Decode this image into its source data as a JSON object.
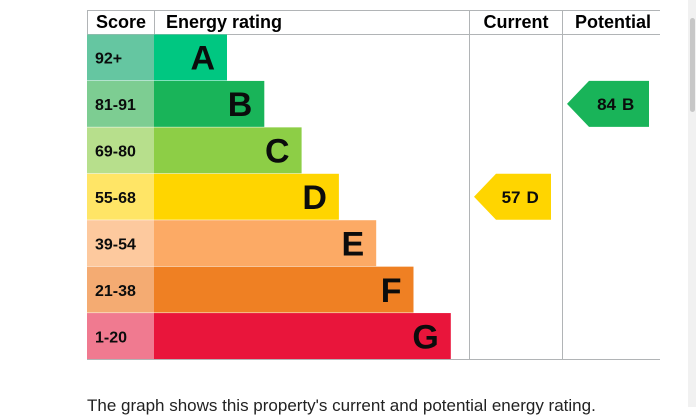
{
  "headers": {
    "score": "Score",
    "rating": "Energy rating",
    "current": "Current",
    "potential": "Potential"
  },
  "chart_data": {
    "type": "bar",
    "bands": [
      {
        "letter": "A",
        "range": "92+",
        "color": "#00c781",
        "score_color": "#65c6a1"
      },
      {
        "letter": "B",
        "range": "81-91",
        "color": "#19b459",
        "score_color": "#7dcd92"
      },
      {
        "letter": "C",
        "range": "69-80",
        "color": "#8dce46",
        "score_color": "#b7df8c"
      },
      {
        "letter": "D",
        "range": "55-68",
        "color": "#ffd500",
        "score_color": "#ffe566"
      },
      {
        "letter": "E",
        "range": "39-54",
        "color": "#fcaa65",
        "score_color": "#fdc99e"
      },
      {
        "letter": "F",
        "range": "21-38",
        "color": "#ef8023",
        "score_color": "#f4ab72"
      },
      {
        "letter": "G",
        "range": "1-20",
        "color": "#e9153b",
        "score_color": "#f07a90"
      }
    ],
    "current": {
      "value": 57,
      "letter": "D",
      "color": "#ffd500"
    },
    "potential": {
      "value": 84,
      "letter": "B",
      "color": "#19b459"
    }
  },
  "caption": "The graph shows this property's current and potential energy rating."
}
